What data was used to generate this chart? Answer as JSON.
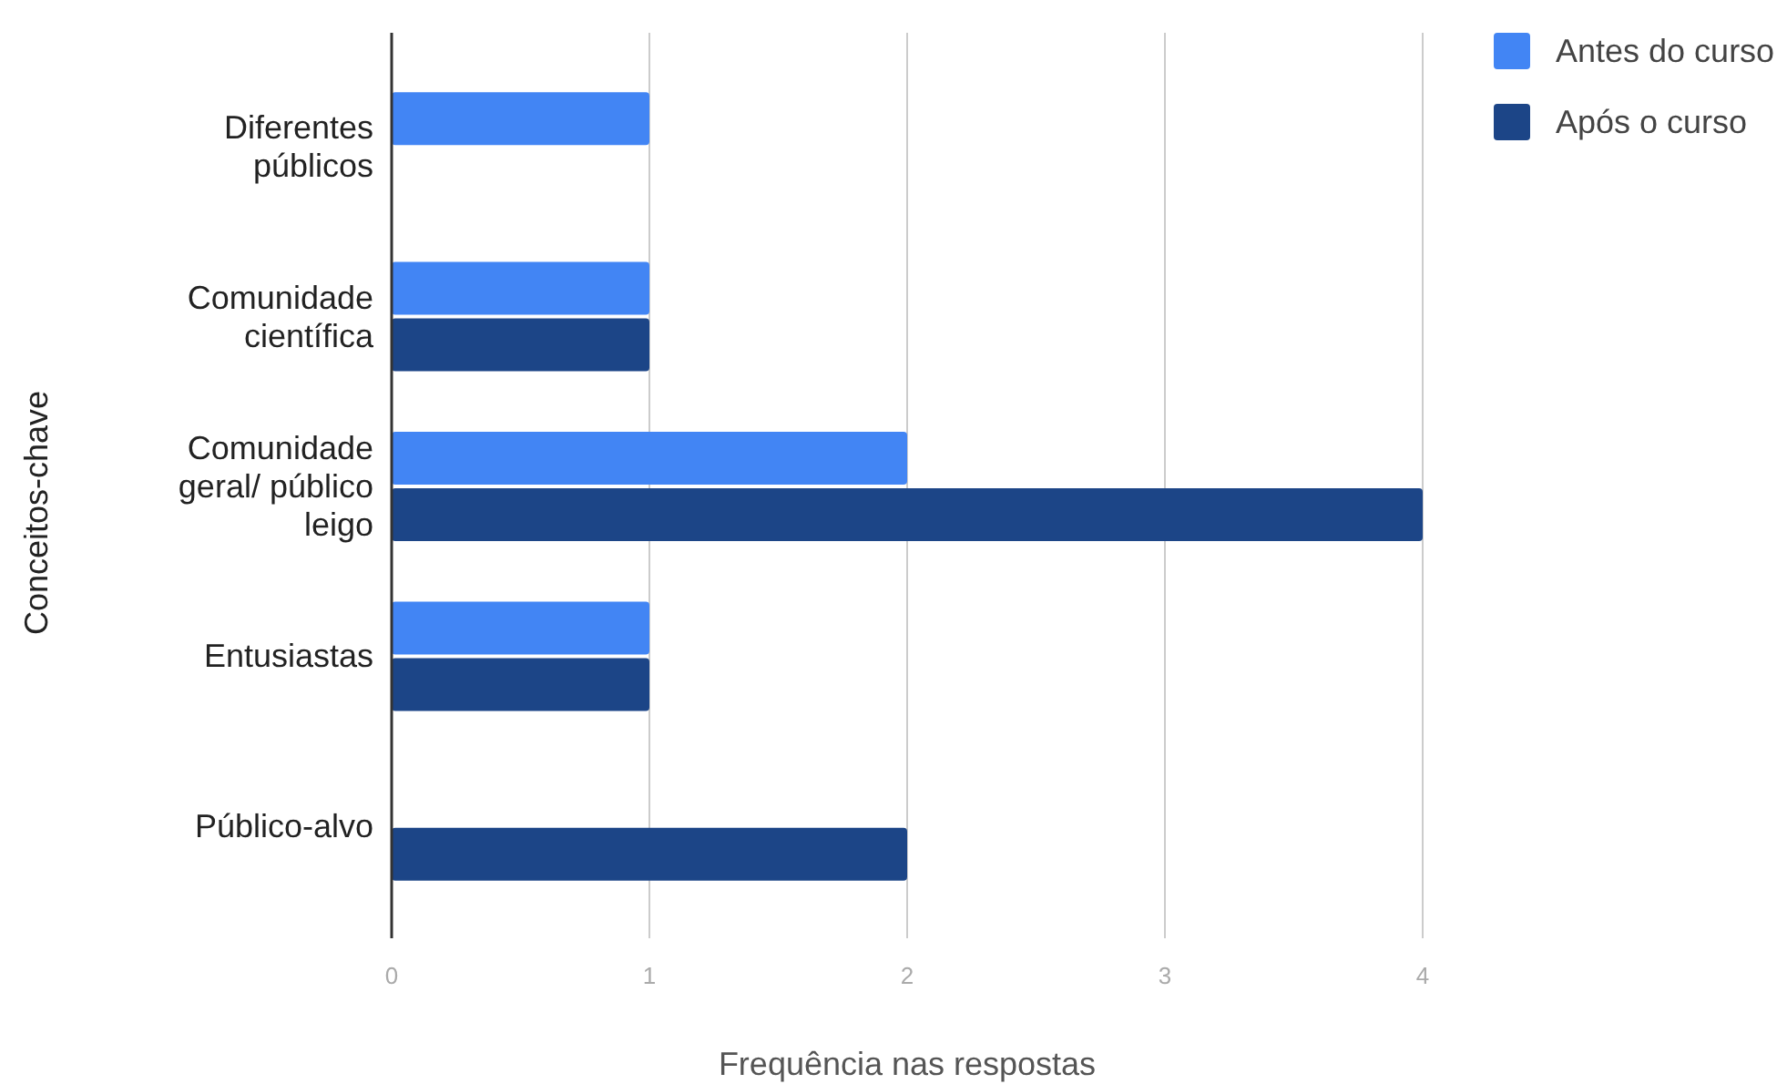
{
  "chart_data": {
    "type": "bar",
    "orientation": "horizontal",
    "xlabel": "Frequência nas respostas",
    "ylabel": "Conceitos-chave",
    "categories": [
      "Diferentes públicos",
      "Comunidade científica",
      "Comunidade geral/ público leigo",
      "Entusiastas",
      "Público-alvo"
    ],
    "series": [
      {
        "name": "Antes do curso",
        "color": "#4285f4",
        "values": [
          1,
          1,
          2,
          1,
          null
        ]
      },
      {
        "name": "Após o curso",
        "color": "#1c4587",
        "values": [
          null,
          1,
          4,
          1,
          2
        ]
      }
    ],
    "xlim": [
      0,
      4
    ],
    "xticks": [
      0,
      1,
      2,
      3,
      4
    ],
    "grid": "x",
    "legend": "top right"
  }
}
